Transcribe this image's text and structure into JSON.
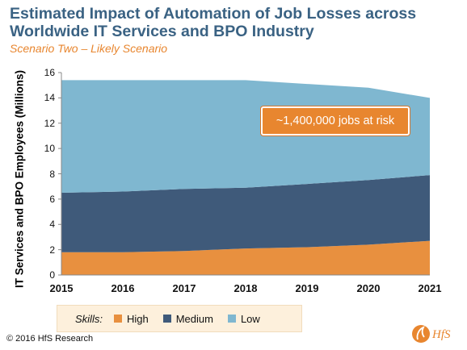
{
  "title": "Estimated Impact of Automation of Job Losses across Worldwide IT Services and BPO Industry",
  "subtitle": "Scenario Two – Likely Scenario",
  "callout": "~1,400,000 jobs at risk",
  "footer": "© 2016 HfS Research",
  "logo_text": "HfS",
  "legend": {
    "label": "Skills:",
    "items": [
      {
        "name": "High",
        "color": "#e8903f"
      },
      {
        "name": "Medium",
        "color": "#3f5a7a"
      },
      {
        "name": "Low",
        "color": "#7fb7d0"
      }
    ]
  },
  "chart_data": {
    "type": "area",
    "stacked": true,
    "x": [
      2015,
      2016,
      2017,
      2018,
      2019,
      2020,
      2021
    ],
    "x_ticks": [
      "2015",
      "2016",
      "2017",
      "2018",
      "2019",
      "2020",
      "2021"
    ],
    "ylabel": "IT Services and BPO Employees (Millions)",
    "ylim": [
      0,
      16
    ],
    "y_ticks": [
      0,
      2,
      4,
      6,
      8,
      10,
      12,
      14,
      16
    ],
    "grid": false,
    "legend_position": "bottom",
    "series": [
      {
        "name": "High",
        "values": [
          1.8,
          1.8,
          1.9,
          2.1,
          2.2,
          2.4,
          2.7
        ],
        "color": "#e8903f"
      },
      {
        "name": "Medium",
        "values": [
          4.7,
          4.8,
          4.9,
          4.8,
          5.0,
          5.1,
          5.2
        ],
        "color": "#3f5a7a"
      },
      {
        "name": "Low",
        "values": [
          8.9,
          8.8,
          8.6,
          8.5,
          7.9,
          7.3,
          6.1
        ],
        "color": "#7fb7d0"
      }
    ]
  }
}
